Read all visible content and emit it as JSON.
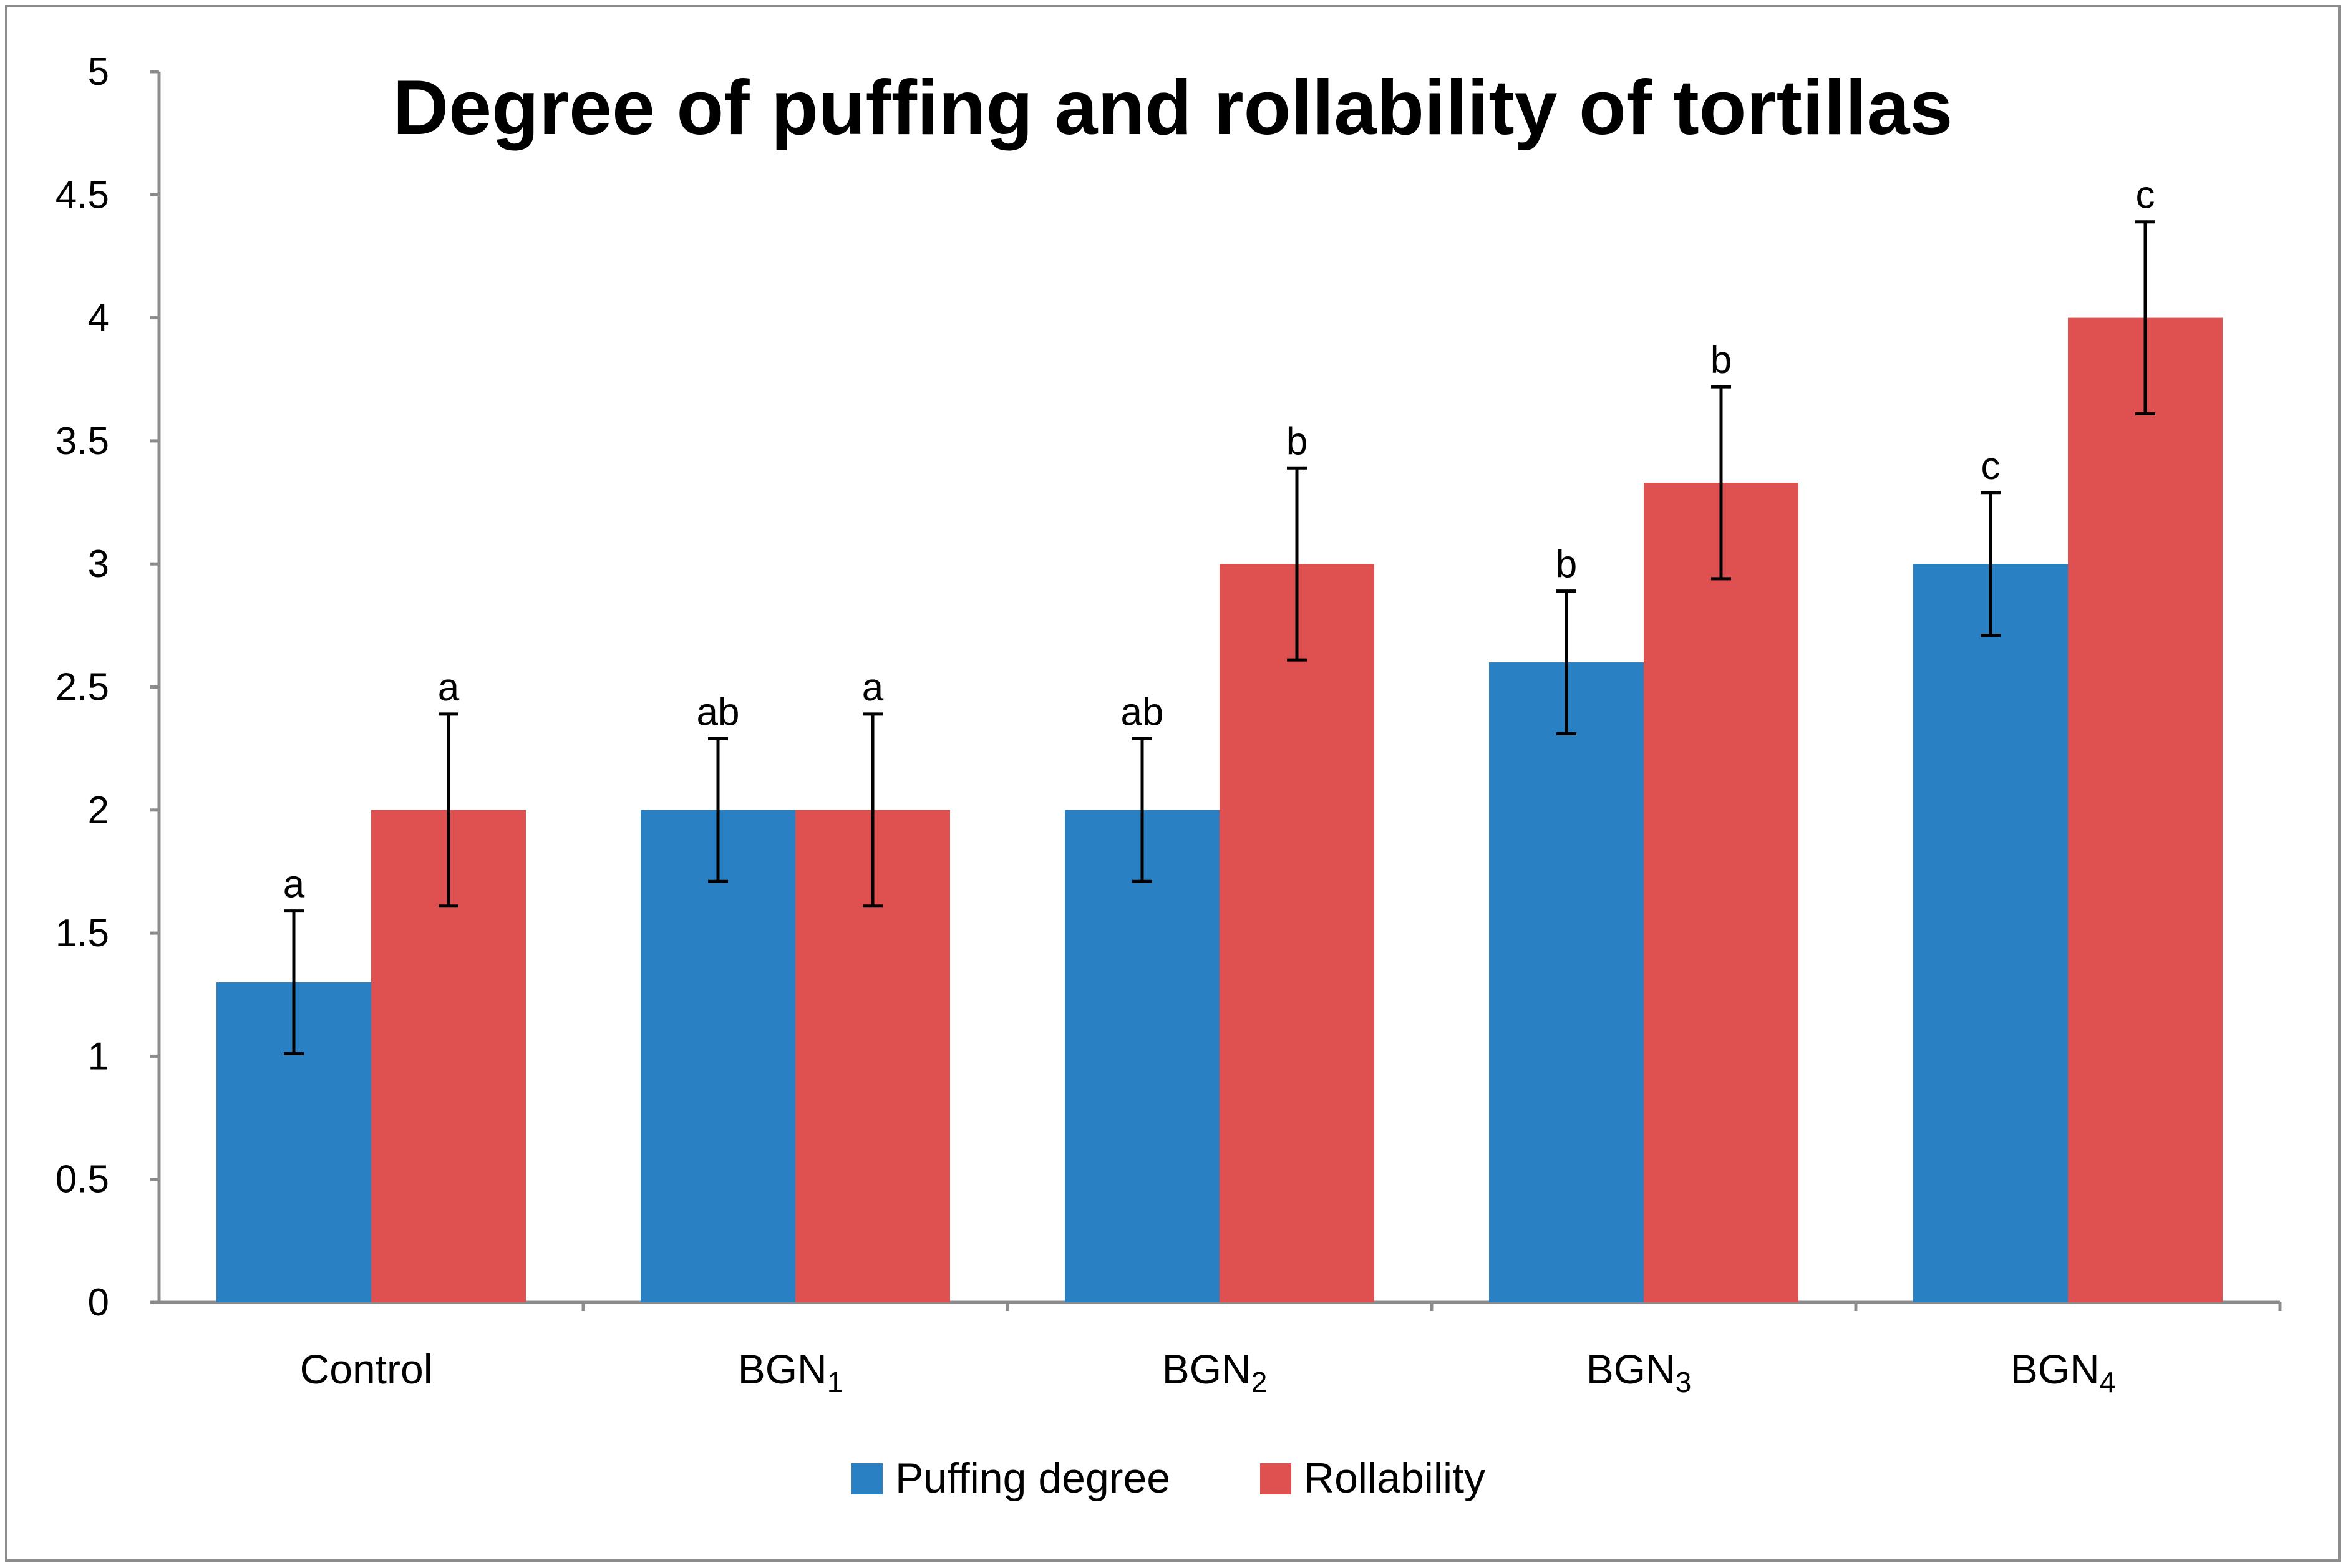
{
  "chart_data": {
    "type": "bar",
    "title": "Degree of puffing and rollability of tortillas",
    "xlabel": "",
    "ylabel": "",
    "ylim": [
      0,
      5
    ],
    "yticks": [
      0,
      0.5,
      1,
      1.5,
      2,
      2.5,
      3,
      3.5,
      4,
      4.5,
      5
    ],
    "ytick_labels": [
      "0",
      "0.5",
      "1",
      "1.5",
      "2",
      "2.5",
      "3",
      "3.5",
      "4",
      "4.5",
      "5"
    ],
    "grid": false,
    "legend_position": "bottom",
    "categories": [
      {
        "base": "Control",
        "sub": ""
      },
      {
        "base": "BGN",
        "sub": "1"
      },
      {
        "base": "BGN",
        "sub": "2"
      },
      {
        "base": "BGN",
        "sub": "3"
      },
      {
        "base": "BGN",
        "sub": "4"
      }
    ],
    "series": [
      {
        "name": "Puffing degree",
        "color": "#2980c2",
        "values": [
          1.3,
          2.0,
          2.0,
          2.6,
          3.0
        ],
        "errors": [
          0.29,
          0.29,
          0.29,
          0.29,
          0.29
        ],
        "significance": [
          "a",
          "ab",
          "ab",
          "b",
          "c"
        ]
      },
      {
        "name": "Rollability",
        "color": "#df5150",
        "values": [
          2.0,
          2.0,
          3.0,
          3.33,
          4.0
        ],
        "errors": [
          0.39,
          0.39,
          0.39,
          0.39,
          0.39
        ],
        "significance": [
          "a",
          "a",
          "b",
          "b",
          "c"
        ]
      }
    ]
  }
}
